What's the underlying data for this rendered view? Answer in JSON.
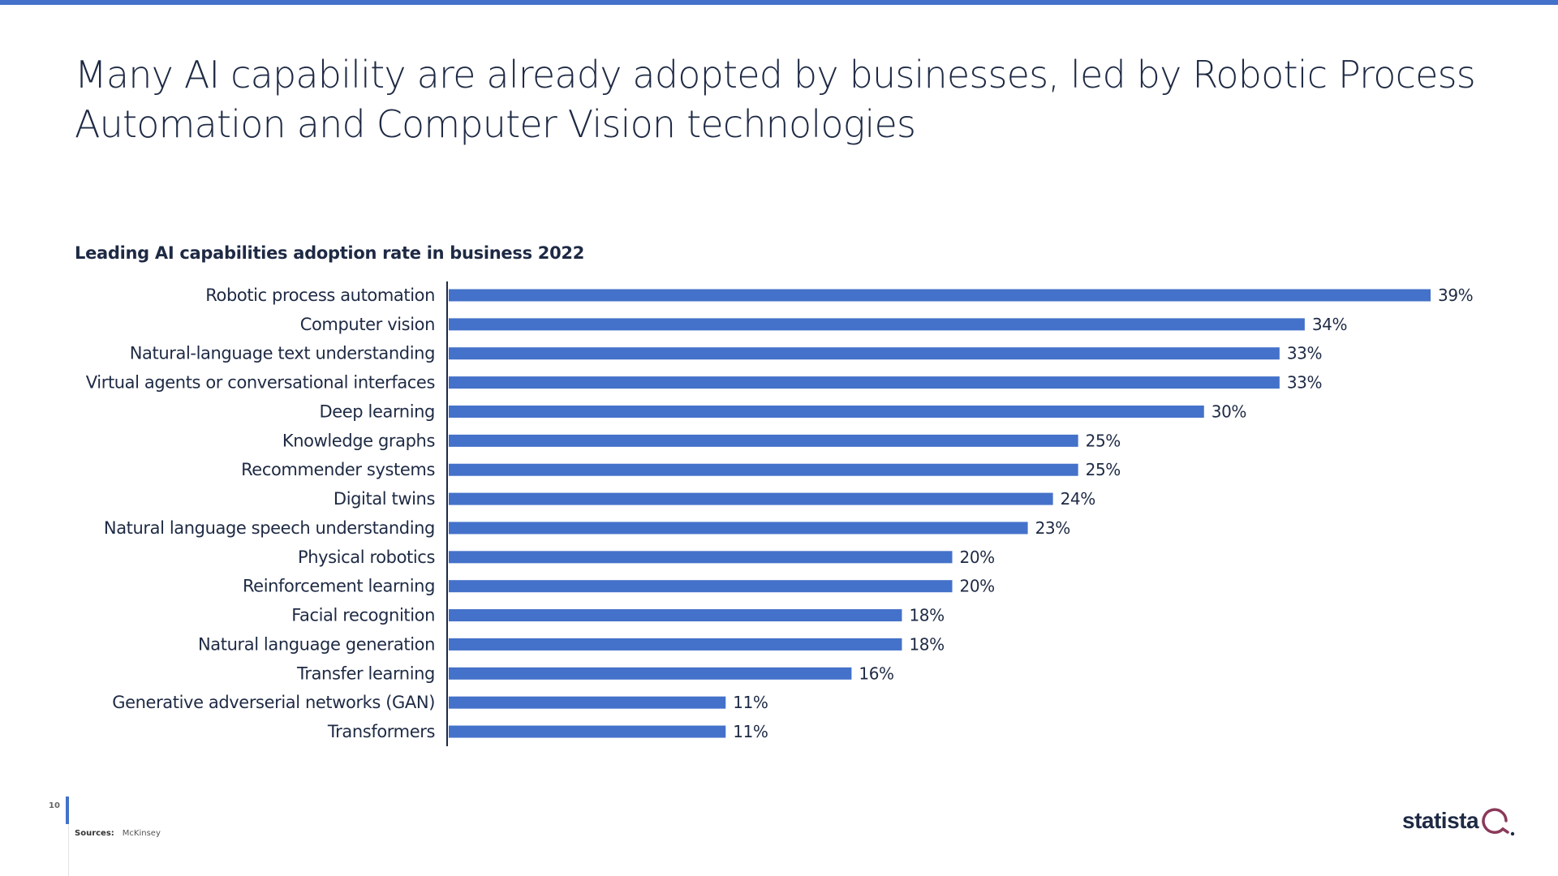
{
  "title": "Many AI capability are already adopted by businesses, led by Robotic Process Automation and Computer Vision technologies",
  "page_number": "10",
  "sources_label": "Sources:",
  "sources_value": "McKinsey",
  "logo_text": "statista",
  "colors": {
    "accent": "#4471c9",
    "bar": "#4471c9",
    "text": "#1e2a44"
  },
  "chart_data": {
    "type": "bar",
    "orientation": "horizontal",
    "title": "Leading AI capabilities adoption rate in business 2022",
    "xlabel": "",
    "ylabel": "",
    "unit": "%",
    "grid": false,
    "legend": "none",
    "xlim": [
      0,
      39
    ],
    "categories": [
      "Robotic process automation",
      "Computer vision",
      "Natural-language text understanding",
      "Virtual agents or conversational interfaces",
      "Deep learning",
      "Knowledge graphs",
      "Recommender systems",
      "Digital twins",
      "Natural language speech understanding",
      "Physical robotics",
      "Reinforcement learning",
      "Facial recognition",
      "Natural language generation",
      "Transfer learning",
      "Generative adverserial networks (GAN)",
      "Transformers"
    ],
    "values": [
      39,
      34,
      33,
      33,
      30,
      25,
      25,
      24,
      23,
      20,
      20,
      18,
      18,
      16,
      11,
      11
    ],
    "data_labels": [
      "39%",
      "34%",
      "33%",
      "33%",
      "30%",
      "25%",
      "25%",
      "24%",
      "23%",
      "20%",
      "20%",
      "18%",
      "18%",
      "16%",
      "11%",
      "11%"
    ]
  }
}
